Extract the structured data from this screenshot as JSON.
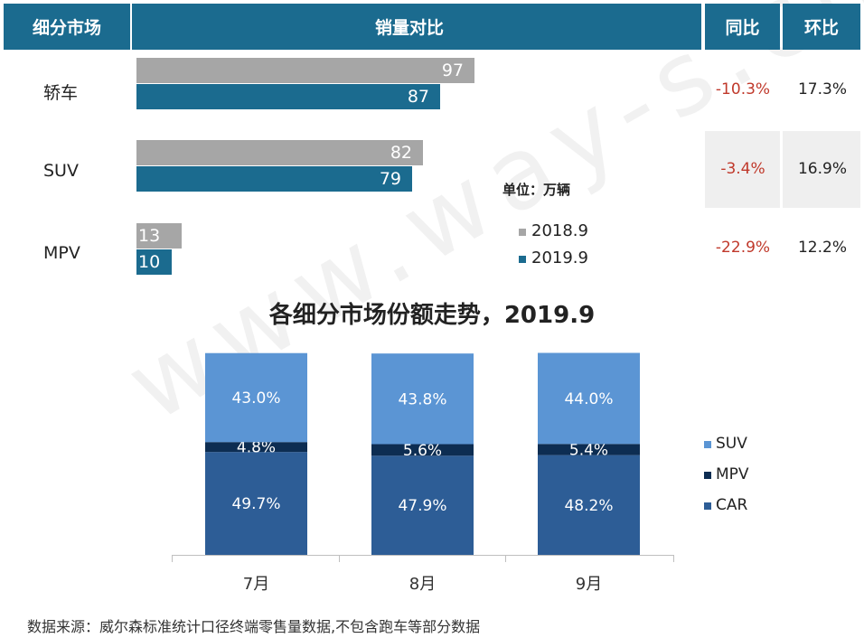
{
  "header": {
    "segment": "细分市场",
    "sales_compare": "销量对比",
    "yoy": "同比",
    "mom": "环比"
  },
  "unit_label": "单位：万辆",
  "legend_top": {
    "a": "2018.9",
    "b": "2019.9"
  },
  "rows": [
    {
      "name": "轿车",
      "v2018": "97",
      "v2019": "87",
      "yoy": "-10.3%",
      "mom": "17.3%"
    },
    {
      "name": "SUV",
      "v2018": "82",
      "v2019": "79",
      "yoy": "-3.4%",
      "mom": "16.9%"
    },
    {
      "name": "MPV",
      "v2018": "13",
      "v2019": "10",
      "yoy": "-22.9%",
      "mom": "12.2%"
    }
  ],
  "colors": {
    "header_bg": "#1b6b8f",
    "bar_2018": "#a6a6a6",
    "bar_2019": "#1b6b8f",
    "suv": "#5b95d4",
    "mpv": "#0d2d52",
    "car": "#2d5d96",
    "negative": "#c0392b"
  },
  "chart_title": "各细分市场份额走势，2019.9",
  "legend_bottom": {
    "suv": "SUV",
    "mpv": "MPV",
    "car": "CAR"
  },
  "watermark": "www.way-s.cn",
  "source": "数据来源：威尔森标准统计口径终端零售量数据,不包含跑车等部分数据",
  "chart_data": [
    {
      "type": "bar",
      "orientation": "horizontal",
      "title": "销量对比",
      "unit": "万辆",
      "categories": [
        "轿车",
        "SUV",
        "MPV"
      ],
      "series": [
        {
          "name": "2018.9",
          "values": [
            97,
            82,
            13
          ]
        },
        {
          "name": "2019.9",
          "values": [
            87,
            79,
            10
          ]
        }
      ],
      "xlim": [
        0,
        100
      ]
    },
    {
      "type": "bar",
      "stacked": true,
      "title": "各细分市场份额走势，2019.9",
      "categories": [
        "7月",
        "8月",
        "9月"
      ],
      "series": [
        {
          "name": "CAR",
          "values": [
            49.7,
            47.9,
            48.2
          ],
          "labels": [
            "49.7%",
            "47.9%",
            "48.2%"
          ]
        },
        {
          "name": "MPV",
          "values": [
            4.8,
            5.6,
            5.4
          ],
          "labels": [
            "4.8%",
            "5.6%",
            "5.4%"
          ]
        },
        {
          "name": "SUV",
          "values": [
            43.0,
            43.8,
            44.0
          ],
          "labels": [
            "43.0%",
            "43.8%",
            "44.0%"
          ]
        }
      ],
      "ylim": [
        0,
        100
      ]
    }
  ]
}
